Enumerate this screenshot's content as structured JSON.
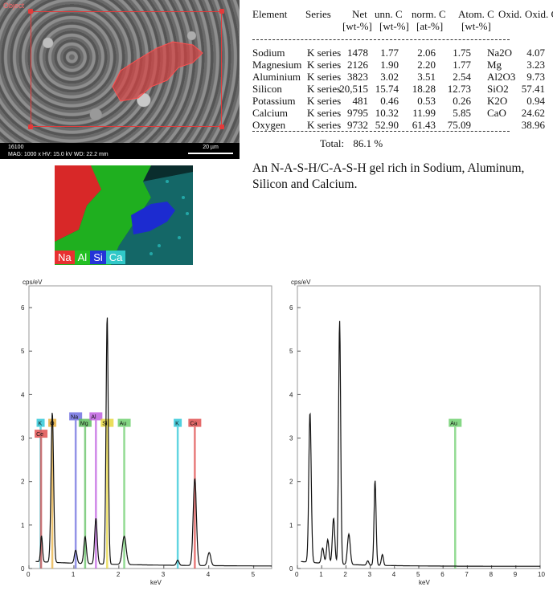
{
  "sem": {
    "label": "Object",
    "image_id": "16100",
    "meta": "MAG: 1000 x    HV: 15.0 kV    WD: 22.2 mm",
    "scale": "20 µm"
  },
  "map_legend": [
    {
      "el": "Na",
      "color": "#e83030"
    },
    {
      "el": "Al",
      "color": "#22c022"
    },
    {
      "el": "Si",
      "color": "#2434d8"
    },
    {
      "el": "Ca",
      "color": "#30c8c8"
    }
  ],
  "table": {
    "headers": [
      "Element",
      "Series",
      "Net",
      "unn. C",
      "norm. C",
      "Atom. C",
      "Oxid.",
      "Oxid. C"
    ],
    "subheaders": [
      "[wt-%]",
      "[wt-%]",
      "[at-%]",
      "[wt-%]"
    ],
    "rows": [
      [
        "Sodium",
        "K series",
        "1478",
        "1.77",
        "2.06",
        "1.75",
        "Na2O",
        "4.07"
      ],
      [
        "Magnesium",
        "K series",
        "2126",
        "1.90",
        "2.20",
        "1.77",
        "Mg",
        "3.23"
      ],
      [
        "Aluminium",
        "K series",
        "3823",
        "3.02",
        "3.51",
        "2.54",
        "Al2O3",
        "9.73"
      ],
      [
        "Silicon",
        "K series",
        "20,515",
        "15.74",
        "18.28",
        "12.73",
        "SiO2",
        "57.41"
      ],
      [
        "Potassium",
        "K series",
        "481",
        "0.46",
        "0.53",
        "0.26",
        "K2O",
        "0.94"
      ],
      [
        "Calcium",
        "K series",
        "9795",
        "10.32",
        "11.99",
        "5.85",
        "CaO",
        "24.62"
      ],
      [
        "Oxygen",
        "K series",
        "9732",
        "52.90",
        "61.43",
        "75.09",
        "",
        "38.96"
      ]
    ],
    "total_label": "Total:",
    "total_value": "86.1 %"
  },
  "description": "An N-A-S-H/C-A-S-H gel rich in Sodium, Aluminum, Silicon and Calcium.",
  "spectra": {
    "ylabel": "cps/eV",
    "xlabel": "keV",
    "left": {
      "xticks": [
        "0",
        "1",
        "2",
        "3",
        "4",
        "5"
      ],
      "yticks": [
        "0",
        "1",
        "2",
        "3",
        "4",
        "5",
        "6"
      ],
      "labels": [
        {
          "el": "K",
          "x": 0.26,
          "y": 3.35,
          "color": "#30c8d8"
        },
        {
          "el": "Ce",
          "x": 0.27,
          "y": 3.1,
          "color": "#e05050"
        },
        {
          "el": "O",
          "x": 0.52,
          "y": 3.35,
          "color": "#e8b040"
        },
        {
          "el": "Na",
          "x": 1.04,
          "y": 3.5,
          "color": "#7070e0"
        },
        {
          "el": "Mg",
          "x": 1.25,
          "y": 3.35,
          "color": "#60c060"
        },
        {
          "el": "Al",
          "x": 1.49,
          "y": 3.5,
          "color": "#c060e0"
        },
        {
          "el": "Si",
          "x": 1.74,
          "y": 3.35,
          "color": "#e8d840"
        },
        {
          "el": "Au",
          "x": 2.12,
          "y": 3.35,
          "color": "#70d070"
        },
        {
          "el": "K",
          "x": 3.31,
          "y": 3.35,
          "color": "#30c8d8"
        },
        {
          "el": "Ca",
          "x": 3.69,
          "y": 3.35,
          "color": "#e05050"
        }
      ]
    },
    "right": {
      "xticks": [
        "0",
        "1",
        "2",
        "3",
        "4",
        "5",
        "6",
        "7",
        "8",
        "9",
        "10"
      ],
      "yticks": [
        "0",
        "1",
        "2",
        "3",
        "4",
        "5",
        "6"
      ],
      "labels": [
        {
          "el": "Au",
          "x": 6.5,
          "y": 3.35,
          "color": "#70d070"
        }
      ]
    }
  }
}
